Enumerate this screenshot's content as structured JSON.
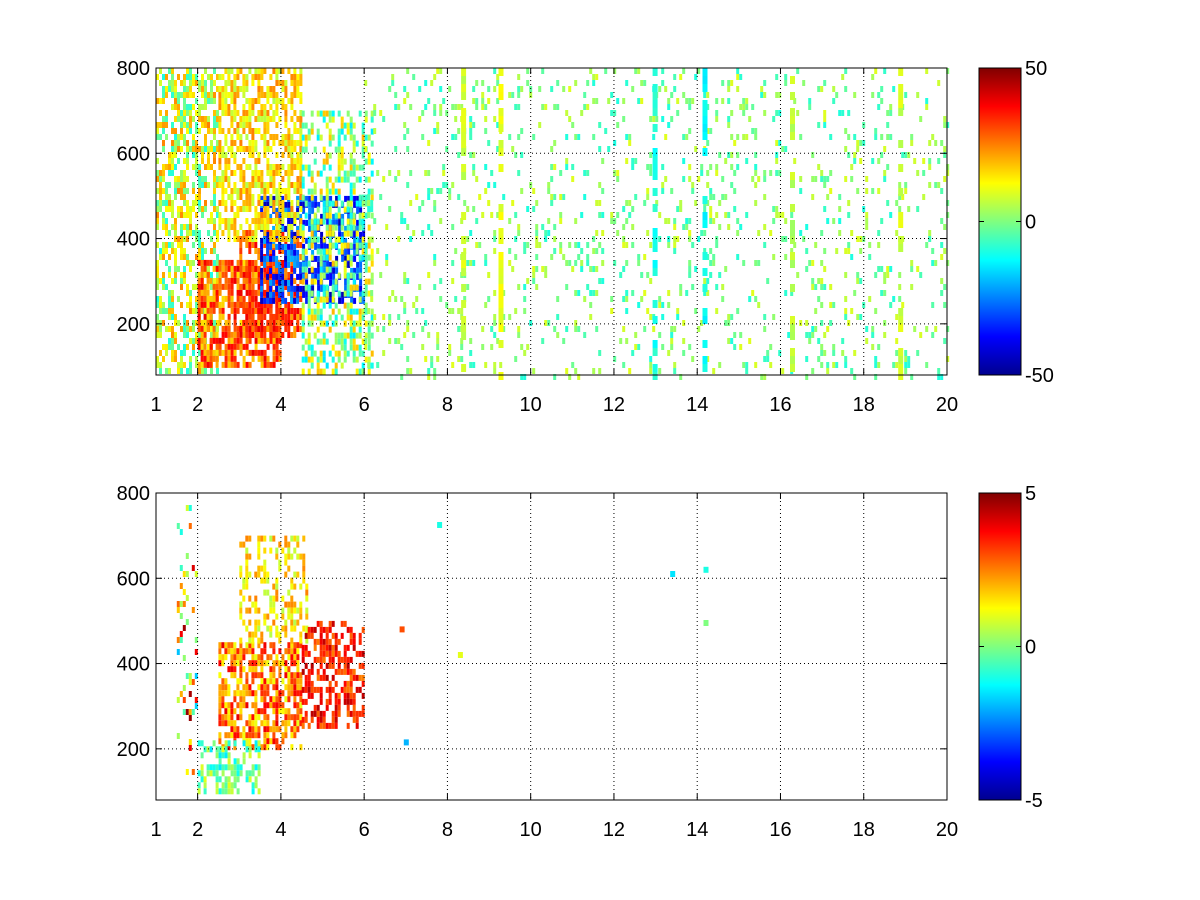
{
  "chart_data": [
    {
      "type": "heatmap",
      "title": "",
      "xlabel": "",
      "ylabel": "",
      "xlim": [
        1,
        20
      ],
      "ylim": [
        80,
        800
      ],
      "x_ticks": [
        1,
        2,
        4,
        6,
        8,
        10,
        12,
        14,
        16,
        18,
        20
      ],
      "y_ticks": [
        200,
        400,
        600,
        800
      ],
      "grid": true,
      "colormap": "jet",
      "colorbar": {
        "min": -50,
        "max": 50,
        "ticks": [
          50,
          0,
          -50
        ]
      },
      "regions": [
        {
          "x": [
            1.0,
            2.5
          ],
          "y": [
            90,
            800
          ],
          "value_range": [
            -10,
            25
          ],
          "density": 0.55
        },
        {
          "x": [
            2.0,
            4.0
          ],
          "y": [
            100,
            350
          ],
          "value_range": [
            15,
            40
          ],
          "density": 0.75
        },
        {
          "x": [
            3.0,
            4.5
          ],
          "y": [
            180,
            420
          ],
          "value_range": [
            20,
            40
          ],
          "density": 0.65
        },
        {
          "x": [
            3.5,
            6.0
          ],
          "y": [
            250,
            500
          ],
          "value_range": [
            -45,
            -20
          ],
          "density": 0.65
        },
        {
          "x": [
            2.5,
            4.5
          ],
          "y": [
            400,
            800
          ],
          "value_range": [
            5,
            25
          ],
          "density": 0.6
        },
        {
          "x": [
            4.5,
            6.2
          ],
          "y": [
            90,
            700
          ],
          "value_range": [
            -15,
            20
          ],
          "density": 0.45
        },
        {
          "x": [
            6.0,
            20.0
          ],
          "y": [
            80,
            800
          ],
          "value_range": [
            -10,
            10
          ],
          "density": 0.12
        }
      ],
      "streaks": [
        {
          "x": 14.2,
          "y": [
            80,
            800
          ],
          "value": -12
        },
        {
          "x": 9.3,
          "y": [
            80,
            800
          ],
          "value": 10
        },
        {
          "x": 8.4,
          "y": [
            80,
            800
          ],
          "value": 8
        },
        {
          "x": 13.0,
          "y": [
            80,
            800
          ],
          "value": -10
        },
        {
          "x": 18.9,
          "y": [
            80,
            800
          ],
          "value": 8
        },
        {
          "x": 16.3,
          "y": [
            80,
            800
          ],
          "value": 6
        }
      ]
    },
    {
      "type": "heatmap",
      "title": "",
      "xlabel": "",
      "ylabel": "",
      "xlim": [
        1,
        20
      ],
      "ylim": [
        80,
        800
      ],
      "x_ticks": [
        1,
        2,
        4,
        6,
        8,
        10,
        12,
        14,
        16,
        18,
        20
      ],
      "y_ticks": [
        200,
        400,
        600,
        800
      ],
      "grid": true,
      "colormap": "jet",
      "colorbar": {
        "min": -5,
        "max": 5,
        "ticks": [
          5,
          0,
          -5
        ]
      },
      "regions": [
        {
          "x": [
            2.5,
            4.5
          ],
          "y": [
            200,
            450
          ],
          "value_range": [
            1,
            4
          ],
          "density": 0.65
        },
        {
          "x": [
            3.0,
            4.6
          ],
          "y": [
            450,
            700
          ],
          "value_range": [
            0.5,
            2.5
          ],
          "density": 0.4
        },
        {
          "x": [
            4.5,
            6.0
          ],
          "y": [
            250,
            500
          ],
          "value_range": [
            2.5,
            4.5
          ],
          "density": 0.5
        },
        {
          "x": [
            2.0,
            3.5
          ],
          "y": [
            100,
            220
          ],
          "value_range": [
            -1.5,
            1
          ],
          "density": 0.55
        },
        {
          "x": [
            1.5,
            2.0
          ],
          "y": [
            150,
            800
          ],
          "value_range": [
            -2,
            5
          ],
          "density": 0.15
        }
      ],
      "points": [
        {
          "x": 7.8,
          "y": 725,
          "value": -1
        },
        {
          "x": 8.3,
          "y": 420,
          "value": 1
        },
        {
          "x": 13.4,
          "y": 610,
          "value": -1.5
        },
        {
          "x": 14.2,
          "y": 620,
          "value": -1
        },
        {
          "x": 14.2,
          "y": 495,
          "value": 0
        },
        {
          "x": 6.9,
          "y": 480,
          "value": 3
        },
        {
          "x": 7.0,
          "y": 215,
          "value": -2
        }
      ]
    }
  ]
}
